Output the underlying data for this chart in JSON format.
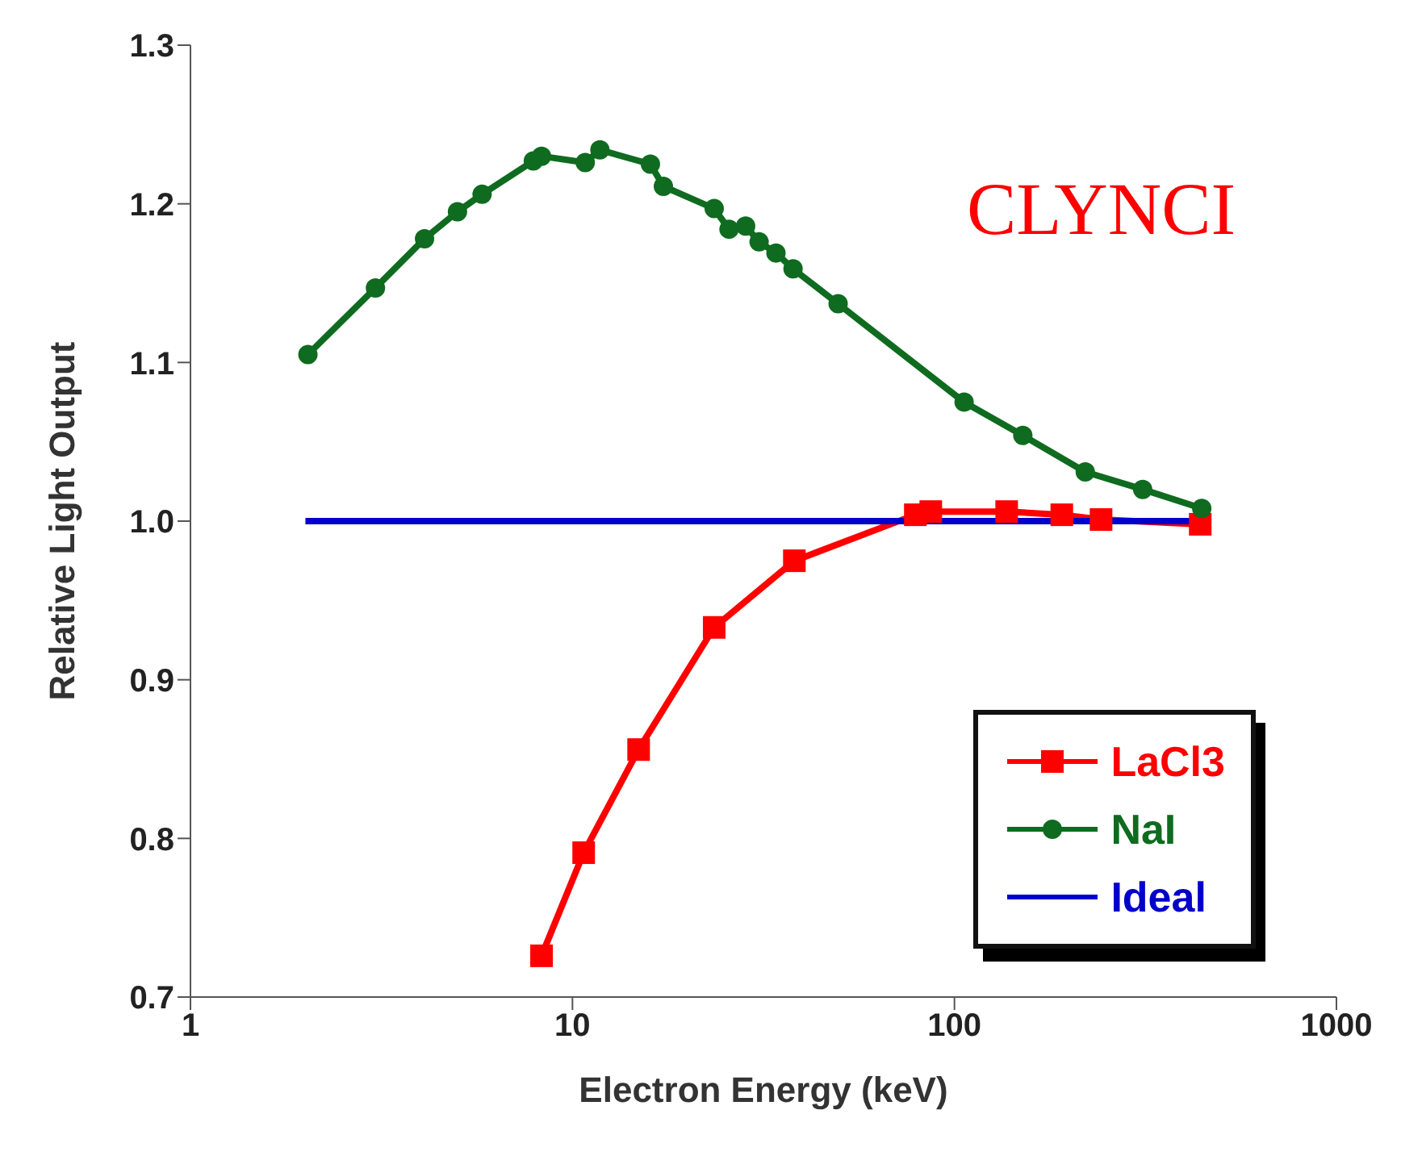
{
  "chart_data": {
    "type": "line",
    "xlabel": "Electron Energy (keV)",
    "ylabel": "Relative Light Output",
    "log": "x",
    "xlim": [
      1,
      1000
    ],
    "xticks": [
      1,
      10,
      100,
      1000
    ],
    "ylim": [
      0.7,
      1.3
    ],
    "yticks": [
      0.7,
      0.8,
      0.9,
      {
        "value": 1,
        "label": "1.0"
      },
      1.1,
      1.2,
      1.3
    ],
    "legend": "bottom right",
    "line_style": "solid",
    "annotations": [
      "CLYNCI"
    ],
    "series": [
      {
        "name": "LaCl3",
        "color": "#ff0000",
        "marker": "square",
        "x": [
          8.3,
          10.7,
          14.9,
          23.5,
          38.1,
          79,
          86.7,
          137,
          191,
          242,
          440
        ],
        "values": [
          0.726,
          0.791,
          0.856,
          0.933,
          0.975,
          1.004,
          1.006,
          1.006,
          1.004,
          1.001,
          0.998
        ]
      },
      {
        "name": "NaI",
        "color": "#0f6b1f",
        "marker": "circle",
        "x": [
          2.03,
          3.05,
          4.1,
          5.0,
          5.8,
          7.9,
          8.3,
          10.8,
          11.8,
          16,
          17.3,
          23.5,
          25.7,
          28.4,
          30.8,
          34.1,
          37.8,
          49.6,
          106,
          151,
          220,
          311,
          444
        ],
        "values": [
          1.105,
          1.147,
          1.178,
          1.195,
          1.206,
          1.227,
          1.23,
          1.226,
          1.234,
          1.225,
          1.211,
          1.197,
          1.184,
          1.186,
          1.176,
          1.169,
          1.159,
          1.137,
          1.075,
          1.054,
          1.031,
          1.02,
          1.008
        ]
      },
      {
        "name": "Ideal",
        "color": "#0000cc",
        "marker": "none",
        "x": [
          2.0,
          450
        ],
        "values": [
          1.0,
          1.0
        ]
      }
    ]
  }
}
